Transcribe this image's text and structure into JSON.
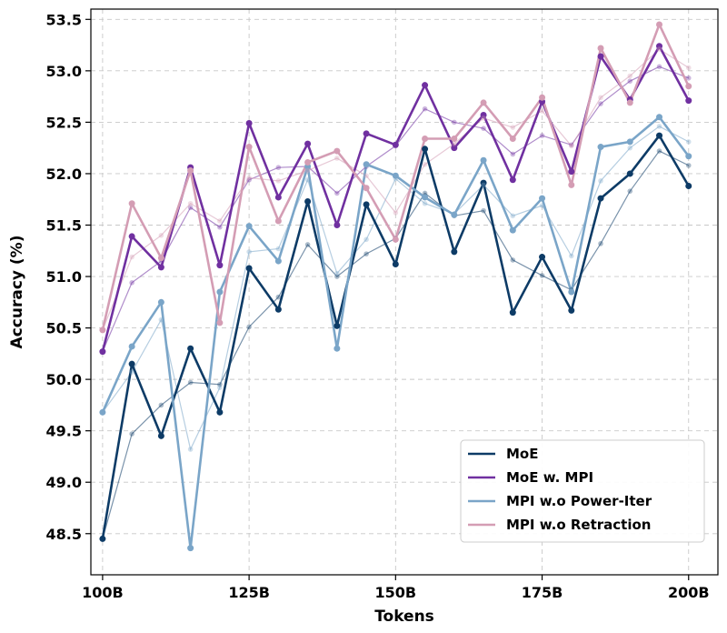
{
  "chart_data": {
    "type": "line",
    "xlabel": "Tokens",
    "ylabel": "Accuracy (%)",
    "x": [
      100,
      105,
      110,
      115,
      120,
      125,
      130,
      135,
      140,
      145,
      150,
      155,
      160,
      165,
      170,
      175,
      180,
      185,
      190,
      195,
      200
    ],
    "xlim": [
      98,
      205
    ],
    "ylim": [
      48.1,
      53.6
    ],
    "xticks": [
      100,
      125,
      150,
      175,
      200
    ],
    "xtick_labels": [
      "100B",
      "125B",
      "150B",
      "175B",
      "200B"
    ],
    "yticks": [
      48.5,
      49.0,
      49.5,
      50.0,
      50.5,
      51.0,
      51.5,
      52.0,
      52.5,
      53.0,
      53.5
    ],
    "ytick_labels": [
      "48.5",
      "49.0",
      "49.5",
      "50.0",
      "50.5",
      "51.0",
      "51.5",
      "52.0",
      "52.5",
      "53.0",
      "53.5"
    ],
    "grid": true,
    "legend_position": "lower-right",
    "series": [
      {
        "name": "MoE",
        "color": "#0d3b66",
        "values": [
          48.45,
          50.15,
          49.45,
          50.3,
          49.68,
          51.08,
          50.68,
          51.73,
          50.52,
          51.7,
          51.12,
          52.24,
          51.24,
          51.91,
          50.65,
          51.19,
          50.67,
          51.76,
          52.0,
          52.37,
          51.88
        ],
        "smoothed": [
          48.45,
          49.47,
          49.75,
          49.97,
          49.95,
          50.51,
          50.8,
          51.31,
          51.0,
          51.22,
          51.37,
          51.81,
          51.59,
          51.64,
          51.16,
          51.01,
          50.87,
          51.32,
          51.83,
          52.22,
          52.08
        ]
      },
      {
        "name": "MoE w. MPI",
        "color": "#7030a0",
        "values": [
          50.27,
          51.39,
          51.09,
          52.06,
          51.11,
          52.49,
          51.77,
          52.29,
          51.5,
          52.39,
          52.28,
          52.86,
          52.25,
          52.57,
          51.94,
          52.7,
          52.02,
          53.14,
          52.72,
          53.24,
          52.71
        ],
        "smoothed": [
          50.27,
          50.94,
          51.15,
          51.67,
          51.48,
          51.94,
          52.06,
          52.07,
          51.81,
          52.07,
          52.27,
          52.63,
          52.5,
          52.44,
          52.19,
          52.37,
          52.28,
          52.68,
          52.9,
          53.04,
          52.93
        ]
      },
      {
        "name": "MPI w.o Power-Iter",
        "color": "#7aa5c8",
        "values": [
          49.68,
          50.32,
          50.75,
          48.36,
          50.85,
          51.49,
          51.15,
          52.07,
          50.3,
          52.09,
          51.98,
          51.77,
          51.6,
          52.13,
          51.45,
          51.76,
          50.85,
          52.26,
          52.31,
          52.55,
          52.17
        ],
        "smoothed": [
          49.68,
          50.07,
          50.58,
          49.32,
          49.92,
          51.24,
          51.27,
          51.94,
          51.03,
          51.36,
          51.95,
          51.71,
          51.61,
          51.89,
          51.59,
          51.69,
          51.2,
          51.93,
          52.25,
          52.46,
          52.31
        ]
      },
      {
        "name": "MPI w.o Retraction",
        "color": "#d49db4",
        "values": [
          50.48,
          51.71,
          51.18,
          52.03,
          50.55,
          52.26,
          51.54,
          52.11,
          52.22,
          51.86,
          51.36,
          52.34,
          52.34,
          52.69,
          52.34,
          52.74,
          51.89,
          53.22,
          52.69,
          53.45,
          52.85
        ],
        "smoothed": [
          50.48,
          51.19,
          51.4,
          51.71,
          51.54,
          51.96,
          51.93,
          52.03,
          52.15,
          51.98,
          51.62,
          52.09,
          52.29,
          52.54,
          52.45,
          52.61,
          52.27,
          52.74,
          52.95,
          53.21,
          53.03
        ]
      }
    ]
  }
}
